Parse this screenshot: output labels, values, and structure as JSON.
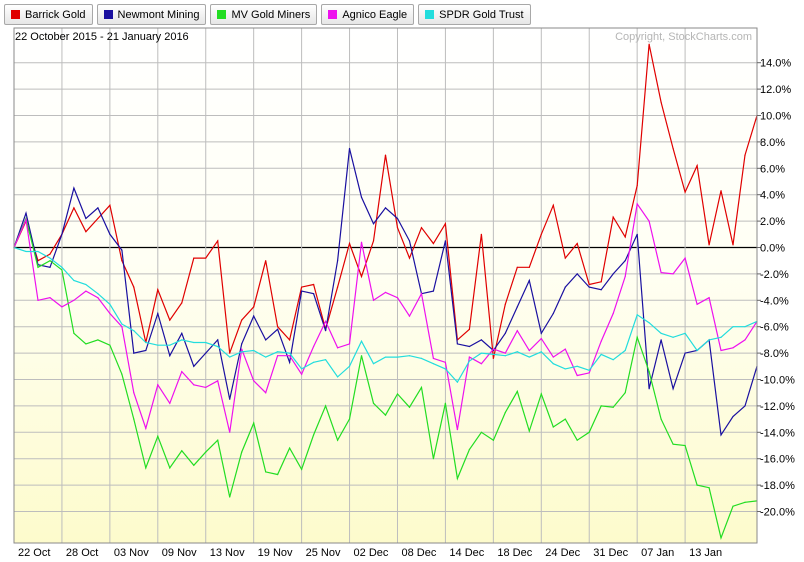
{
  "chart_data": {
    "type": "line",
    "date_range": "22 October 2015 - 21 January 2016",
    "copyright": "Copyright, StockCharts.com",
    "legend_placement": "top-left",
    "grid": true,
    "y_unit": "%",
    "ylim": [
      -22,
      16
    ],
    "y_ticks": [
      "14.0%",
      "12.0%",
      "10.0%",
      "8.0%",
      "6.0%",
      "4.0%",
      "2.0%",
      "0.0%",
      "-2.0%",
      "-4.0%",
      "-6.0%",
      "-8.0%",
      "-10.0%",
      "-12.0%",
      "-14.0%",
      "-16.0%",
      "-18.0%",
      "-20.0%"
    ],
    "y_tick_values": [
      14,
      12,
      10,
      8,
      6,
      4,
      2,
      0,
      -2,
      -4,
      -6,
      -8,
      -10,
      -12,
      -14,
      -16,
      -18,
      -20
    ],
    "x_labels": [
      "22 Oct",
      "28 Oct",
      "03 Nov",
      "09 Nov",
      "13 Nov",
      "19 Nov",
      "25 Nov",
      "02 Dec",
      "08 Dec",
      "14 Dec",
      "18 Dec",
      "24 Dec",
      "31 Dec",
      "07 Jan",
      "13 Jan"
    ],
    "x_label_index": [
      0,
      4,
      8,
      12,
      16,
      20,
      24,
      28,
      32,
      36,
      40,
      44,
      48,
      52,
      56
    ],
    "series": [
      {
        "name": "Barrick Gold",
        "color": "#e00000",
        "values": [
          0.0,
          2.0,
          -1.0,
          -0.5,
          1.0,
          3.0,
          1.2,
          2.2,
          3.2,
          -1.0,
          -3.0,
          -7.2,
          -3.2,
          -5.5,
          -4.2,
          -0.8,
          -0.8,
          0.5,
          -8.0,
          -5.5,
          -4.5,
          -1.0,
          -6.0,
          -7.0,
          -3.0,
          -2.8,
          -6.2,
          -3.0,
          0.3,
          -2.2,
          0.5,
          7.0,
          1.5,
          -0.8,
          1.5,
          0.3,
          1.8,
          -7.0,
          -6.2,
          1.0,
          -8.4,
          -4.3,
          -1.5,
          -1.5,
          1.0,
          3.2,
          -0.8,
          0.3,
          -2.8,
          -2.6,
          2.3,
          0.8,
          4.7,
          15.4,
          11.0,
          7.5,
          4.2,
          6.2,
          0.2,
          4.3,
          0.2,
          7.0,
          10.0
        ]
      },
      {
        "name": "Newmont Mining",
        "color": "#1a10a0",
        "values": [
          0.0,
          2.6,
          -1.3,
          -1.5,
          1.0,
          4.5,
          2.2,
          3.0,
          1.0,
          -0.2,
          -8.0,
          -7.8,
          -5.0,
          -8.2,
          -6.5,
          -9.0,
          -8.0,
          -7.0,
          -11.5,
          -7.3,
          -5.2,
          -7.0,
          -6.2,
          -8.7,
          -3.3,
          -3.5,
          -6.3,
          -1.0,
          7.5,
          3.8,
          1.8,
          3.0,
          2.2,
          0.5,
          -3.5,
          -3.3,
          0.5,
          -7.3,
          -7.5,
          -7.0,
          -7.8,
          -6.5,
          -4.5,
          -2.5,
          -6.5,
          -5.0,
          -3.0,
          -2.0,
          -3.0,
          -3.2,
          -2.0,
          -1.0,
          1.0,
          -10.7,
          -7.0,
          -10.7,
          -8.0,
          -7.8,
          -7.0,
          -14.2,
          -12.8,
          -12.0,
          -9.0
        ]
      },
      {
        "name": "MV Gold Miners",
        "color": "#22dd22",
        "values": [
          0.0,
          2.2,
          -1.5,
          -1.0,
          -1.7,
          -6.5,
          -7.3,
          -7.0,
          -7.4,
          -9.6,
          -13.0,
          -16.7,
          -14.3,
          -16.7,
          -15.4,
          -16.5,
          -15.5,
          -14.6,
          -18.9,
          -15.5,
          -13.3,
          -17.0,
          -17.2,
          -15.2,
          -16.8,
          -14.2,
          -12.0,
          -14.6,
          -13.0,
          -8.2,
          -11.8,
          -12.7,
          -11.1,
          -12.1,
          -10.6,
          -16.0,
          -11.8,
          -17.5,
          -15.3,
          -14.0,
          -14.6,
          -12.5,
          -10.9,
          -13.9,
          -11.1,
          -13.6,
          -13.0,
          -14.6,
          -14.0,
          -12.0,
          -12.1,
          -11.0,
          -6.8,
          -9.4,
          -13.0,
          -14.9,
          -15.0,
          -18.0,
          -18.2,
          -22.0,
          -19.6,
          -19.3,
          -19.2
        ]
      },
      {
        "name": "Agnico Eagle",
        "color": "#ee11ee",
        "values": [
          0.0,
          2.1,
          -4.0,
          -3.8,
          -4.5,
          -4.0,
          -3.3,
          -3.8,
          -5.0,
          -6.0,
          -11.0,
          -13.7,
          -10.4,
          -11.8,
          -9.4,
          -10.4,
          -10.6,
          -10.1,
          -14.0,
          -7.7,
          -10.1,
          -11.0,
          -8.2,
          -8.2,
          -9.6,
          -7.5,
          -5.6,
          -7.6,
          -7.3,
          0.4,
          -4.0,
          -3.4,
          -3.8,
          -5.2,
          -3.5,
          -8.4,
          -8.7,
          -13.8,
          -8.3,
          -8.8,
          -7.7,
          -8.0,
          -6.3,
          -7.8,
          -6.9,
          -8.3,
          -7.7,
          -9.7,
          -9.5,
          -7.1,
          -5.0,
          -2.2,
          3.3,
          2.0,
          -1.9,
          -2.0,
          -0.8,
          -4.3,
          -3.8,
          -7.8,
          -7.6,
          -7.0,
          -5.6
        ]
      },
      {
        "name": "SPDR Gold Trust",
        "color": "#22dddd",
        "values": [
          0.0,
          -0.3,
          -0.3,
          -0.8,
          -1.5,
          -2.5,
          -2.8,
          -3.5,
          -4.3,
          -5.8,
          -6.3,
          -7.2,
          -7.4,
          -7.4,
          -7.0,
          -7.2,
          -7.2,
          -7.5,
          -8.3,
          -7.9,
          -7.8,
          -8.3,
          -7.9,
          -8.0,
          -9.2,
          -8.7,
          -8.5,
          -9.8,
          -9.0,
          -7.1,
          -8.8,
          -8.3,
          -8.3,
          -8.2,
          -8.4,
          -8.8,
          -9.2,
          -10.2,
          -8.6,
          -8.0,
          -8.1,
          -8.2,
          -7.9,
          -8.3,
          -7.9,
          -8.8,
          -9.2,
          -9.0,
          -9.3,
          -8.1,
          -8.5,
          -7.8,
          -5.1,
          -5.7,
          -6.5,
          -6.8,
          -6.5,
          -7.8,
          -7.0,
          -6.8,
          -6.0,
          -6.0,
          -5.6
        ]
      }
    ]
  }
}
